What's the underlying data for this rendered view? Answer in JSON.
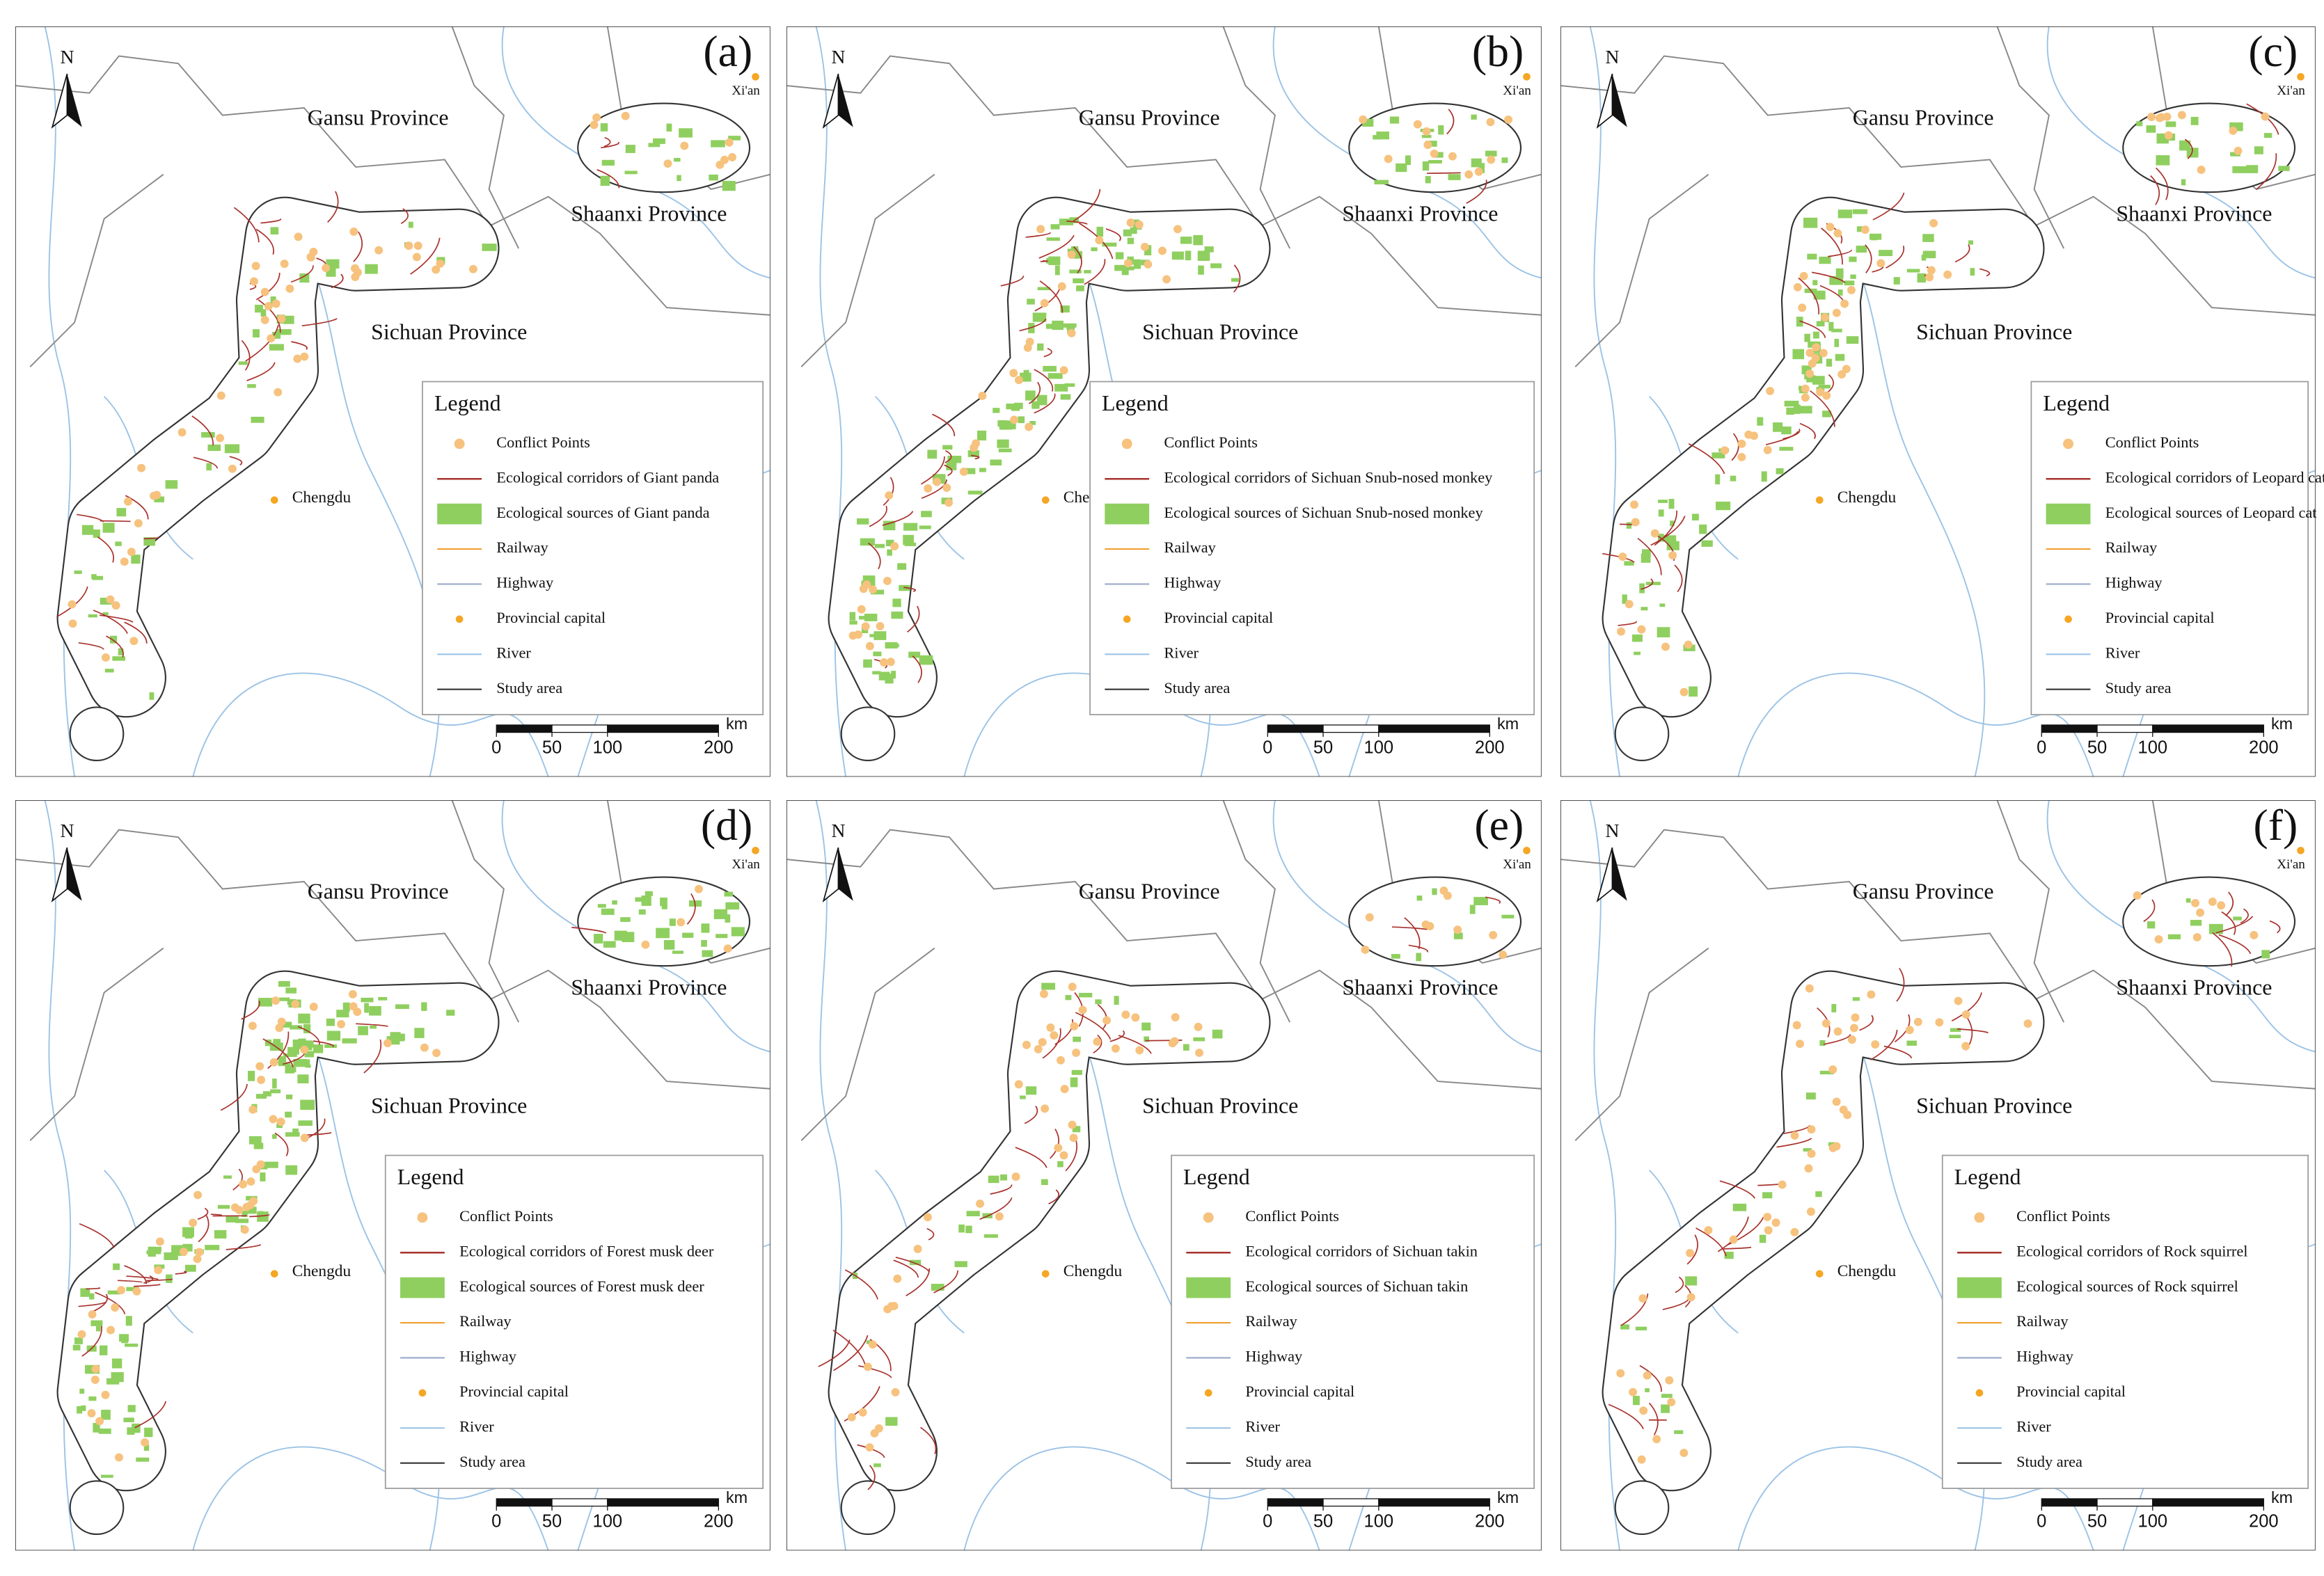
{
  "panels": [
    {
      "label": "(a)",
      "north": "N",
      "capital_east": "Xi'an",
      "gansu": "Gansu Province",
      "shaanxi": "Shaanxi Province",
      "sichuan": "Sichuan Province",
      "capital_west": "Chengdu",
      "legend": {
        "title": "Legend",
        "items": [
          "Conflict Points",
          "Ecological corridors of Giant panda",
          "Ecological sources of Giant panda",
          "Railway",
          "Highway",
          "Provincial capital",
          "River",
          "Study area"
        ]
      },
      "scale": {
        "unit": "km",
        "ticks": [
          0,
          50,
          100,
          200
        ]
      }
    },
    {
      "label": "(b)",
      "north": "N",
      "capital_east": "Xi'an",
      "gansu": "Gansu Province",
      "shaanxi": "Shaanxi Province",
      "sichuan": "Sichuan Province",
      "capital_west": "Chengdu",
      "legend": {
        "title": "Legend",
        "items": [
          "Conflict Points",
          "Ecological corridors of Sichuan Snub-nosed monkey",
          "Ecological sources of Sichuan Snub-nosed monkey",
          "Railway",
          "Highway",
          "Provincial capital",
          "River",
          "Study area"
        ]
      },
      "scale": {
        "unit": "km",
        "ticks": [
          0,
          50,
          100,
          200
        ]
      }
    },
    {
      "label": "(c)",
      "north": "N",
      "capital_east": "Xi'an",
      "gansu": "Gansu Province",
      "shaanxi": "Shaanxi Province",
      "sichuan": "Sichuan Province",
      "capital_west": "Chengdu",
      "legend": {
        "title": "Legend",
        "items": [
          "Conflict Points",
          "Ecological corridors of Leopard cat",
          "Ecological sources of Leopard cat",
          "Railway",
          "Highway",
          "Provincial capital",
          "River",
          "Study area"
        ]
      },
      "scale": {
        "unit": "km",
        "ticks": [
          0,
          50,
          100,
          200
        ]
      }
    },
    {
      "label": "(d)",
      "north": "N",
      "capital_east": "Xi'an",
      "gansu": "Gansu Province",
      "shaanxi": "Shaanxi Province",
      "sichuan": "Sichuan Province",
      "capital_west": "Chengdu",
      "legend": {
        "title": "Legend",
        "items": [
          "Conflict Points",
          "Ecological corridors of Forest musk deer",
          "Ecological sources of Forest musk deer",
          "Railway",
          "Highway",
          "Provincial capital",
          "River",
          "Study area"
        ]
      },
      "scale": {
        "unit": "km",
        "ticks": [
          0,
          50,
          100,
          200
        ]
      }
    },
    {
      "label": "(e)",
      "north": "N",
      "capital_east": "Xi'an",
      "gansu": "Gansu Province",
      "shaanxi": "Shaanxi Province",
      "sichuan": "Sichuan Province",
      "capital_west": "Chengdu",
      "legend": {
        "title": "Legend",
        "items": [
          "Conflict Points",
          "Ecological corridors of Sichuan takin",
          "Ecological sources of Sichuan takin",
          "Railway",
          "Highway",
          "Provincial capital",
          "River",
          "Study area"
        ]
      },
      "scale": {
        "unit": "km",
        "ticks": [
          0,
          50,
          100,
          200
        ]
      }
    },
    {
      "label": "(f)",
      "north": "N",
      "capital_east": "Xi'an",
      "gansu": "Gansu Province",
      "shaanxi": "Shaanxi Province",
      "sichuan": "Sichuan Province",
      "capital_west": "Chengdu",
      "legend": {
        "title": "Legend",
        "items": [
          "Conflict Points",
          "Ecological corridors of Rock squirrel",
          "Ecological sources of Rock squirrel",
          "Railway",
          "Highway",
          "Provincial capital",
          "River",
          "Study area"
        ]
      },
      "scale": {
        "unit": "km",
        "ticks": [
          0,
          50,
          100,
          200
        ]
      }
    }
  ]
}
